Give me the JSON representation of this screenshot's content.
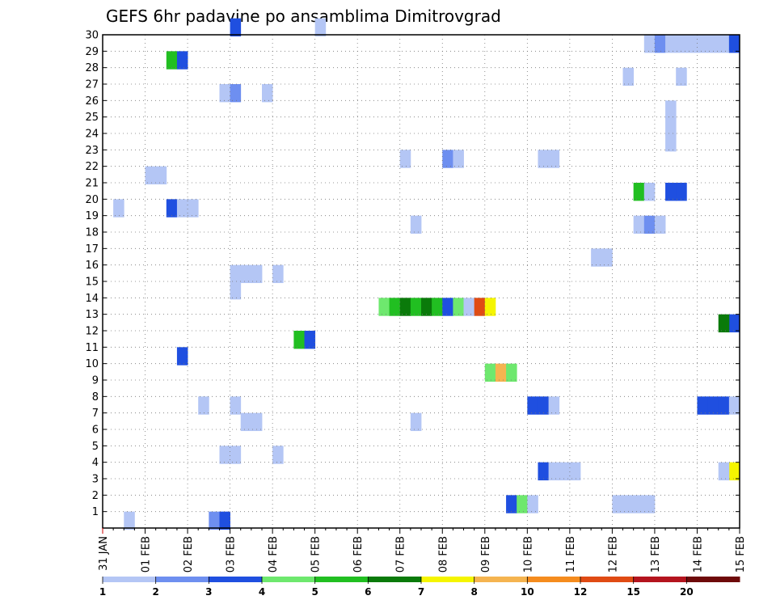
{
  "chart_data": {
    "type": "heatmap",
    "title": "GEFS 6hr padavine po ansamblima Dimitrovgrad",
    "y_ticks": [
      "1",
      "2",
      "3",
      "4",
      "5",
      "6",
      "7",
      "8",
      "9",
      "10",
      "11",
      "12",
      "13",
      "14",
      "15",
      "16",
      "17",
      "18",
      "19",
      "20",
      "21",
      "22",
      "23",
      "24",
      "25",
      "26",
      "27",
      "28",
      "29",
      "30"
    ],
    "x_ticks": [
      "31 JAN",
      "01 FEB",
      "02 FEB",
      "03 FEB",
      "04 FEB",
      "05 FEB",
      "06 FEB",
      "07 FEB",
      "08 FEB",
      "09 FEB",
      "10 FEB",
      "11 FEB",
      "12 FEB",
      "13 FEB",
      "14 FEB",
      "15 FEB"
    ],
    "x_unit": "6-hour step from 31 JAN",
    "y_range": [
      0,
      30
    ],
    "x_range": [
      0,
      60
    ],
    "grid": true,
    "colorbar": {
      "labels": [
        "1",
        "2",
        "3",
        "4",
        "5",
        "6",
        "7",
        "8",
        "10",
        "12",
        "15",
        "20"
      ],
      "colors": [
        "#b4c6f5",
        "#6e8ff0",
        "#1f4fe0",
        "#6ee86e",
        "#21bf21",
        "#0a7a0a",
        "#f5f500",
        "#f5b450",
        "#f58c1e",
        "#e04b14",
        "#b4141e",
        "#6e0a0a"
      ]
    },
    "cells": [
      [
        0,
        10,
        1
      ],
      [
        0,
        11,
        2
      ],
      [
        0,
        2,
        0
      ],
      [
        1,
        48,
        0
      ],
      [
        1,
        49,
        0
      ],
      [
        1,
        50,
        0
      ],
      [
        1,
        51,
        0
      ],
      [
        1,
        38,
        2
      ],
      [
        1,
        39,
        3
      ],
      [
        1,
        40,
        0
      ],
      [
        3,
        41,
        2
      ],
      [
        3,
        42,
        0
      ],
      [
        3,
        43,
        0
      ],
      [
        3,
        44,
        0
      ],
      [
        3,
        59,
        6
      ],
      [
        3,
        58,
        0
      ],
      [
        4,
        11,
        0
      ],
      [
        4,
        12,
        0
      ],
      [
        4,
        16,
        0
      ],
      [
        6,
        13,
        0
      ],
      [
        6,
        14,
        0
      ],
      [
        6,
        29,
        0
      ],
      [
        7,
        12,
        0
      ],
      [
        7,
        9,
        0
      ],
      [
        7,
        40,
        2
      ],
      [
        7,
        41,
        2
      ],
      [
        7,
        42,
        0
      ],
      [
        7,
        56,
        2
      ],
      [
        7,
        57,
        2
      ],
      [
        7,
        58,
        2
      ],
      [
        7,
        59,
        0
      ],
      [
        9,
        36,
        3
      ],
      [
        9,
        37,
        7
      ],
      [
        9,
        38,
        3
      ],
      [
        10,
        7,
        2
      ],
      [
        11,
        18,
        4
      ],
      [
        11,
        19,
        2
      ],
      [
        12,
        59,
        2
      ],
      [
        12,
        58,
        5
      ],
      [
        13,
        26,
        3
      ],
      [
        13,
        27,
        4
      ],
      [
        13,
        28,
        5
      ],
      [
        13,
        29,
        4
      ],
      [
        13,
        30,
        5
      ],
      [
        13,
        31,
        4
      ],
      [
        13,
        32,
        2
      ],
      [
        13,
        33,
        3
      ],
      [
        13,
        34,
        0
      ],
      [
        13,
        35,
        9
      ],
      [
        13,
        36,
        6
      ],
      [
        14,
        12,
        0
      ],
      [
        15,
        12,
        0
      ],
      [
        15,
        13,
        0
      ],
      [
        15,
        14,
        0
      ],
      [
        15,
        16,
        0
      ],
      [
        16,
        46,
        0
      ],
      [
        16,
        47,
        0
      ],
      [
        18,
        29,
        0
      ],
      [
        18,
        50,
        0
      ],
      [
        18,
        51,
        1
      ],
      [
        18,
        52,
        0
      ],
      [
        19,
        1,
        0
      ],
      [
        19,
        6,
        2
      ],
      [
        19,
        7,
        0
      ],
      [
        19,
        8,
        0
      ],
      [
        20,
        50,
        4
      ],
      [
        20,
        51,
        0
      ],
      [
        20,
        53,
        2
      ],
      [
        20,
        54,
        2
      ],
      [
        21,
        4,
        0
      ],
      [
        21,
        5,
        0
      ],
      [
        22,
        28,
        0
      ],
      [
        22,
        32,
        1
      ],
      [
        22,
        33,
        0
      ],
      [
        22,
        41,
        0
      ],
      [
        22,
        42,
        0
      ],
      [
        23,
        53,
        0
      ],
      [
        24,
        53,
        0
      ],
      [
        25,
        53,
        0
      ],
      [
        26,
        11,
        0
      ],
      [
        26,
        12,
        1
      ],
      [
        26,
        15,
        0
      ],
      [
        27,
        49,
        0
      ],
      [
        27,
        54,
        0
      ],
      [
        28,
        6,
        4
      ],
      [
        28,
        7,
        2
      ],
      [
        29,
        51,
        0
      ],
      [
        29,
        52,
        1
      ],
      [
        29,
        53,
        0
      ],
      [
        29,
        54,
        0
      ],
      [
        29,
        55,
        0
      ],
      [
        29,
        56,
        0
      ],
      [
        29,
        57,
        0
      ],
      [
        29,
        58,
        0
      ],
      [
        29,
        59,
        2
      ],
      [
        30,
        12,
        2
      ],
      [
        30,
        20,
        0
      ]
    ]
  }
}
